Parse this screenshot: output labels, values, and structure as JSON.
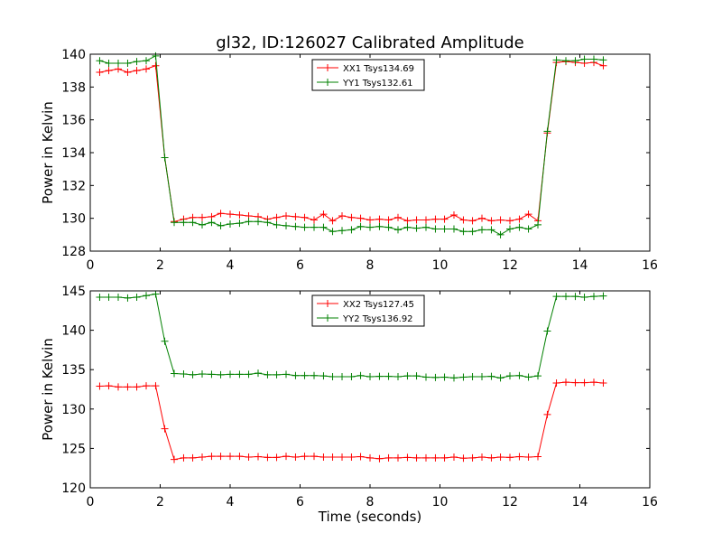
{
  "title": "gl32, ID:126027 Calibrated Amplitude",
  "chart_data": [
    {
      "type": "line",
      "xlabel": "",
      "ylabel": "Power in Kelvin",
      "xlim": [
        0,
        16
      ],
      "ylim": [
        128,
        140
      ],
      "xticks": [
        "0",
        "2",
        "4",
        "6",
        "8",
        "10",
        "12",
        "14",
        "16"
      ],
      "yticks": [
        "128",
        "130",
        "132",
        "134",
        "136",
        "138",
        "140"
      ],
      "legend_position": "top-center",
      "series": [
        {
          "name": "XX1 Tsys134.69",
          "color": "#ff0000",
          "marker": "+",
          "x": [
            0.27,
            0.53,
            0.8,
            1.07,
            1.33,
            1.6,
            1.87,
            2.13,
            2.4,
            2.67,
            2.93,
            3.2,
            3.47,
            3.73,
            4.0,
            4.27,
            4.53,
            4.8,
            5.07,
            5.33,
            5.6,
            5.87,
            6.13,
            6.4,
            6.67,
            6.93,
            7.2,
            7.47,
            7.73,
            8.0,
            8.27,
            8.53,
            8.8,
            9.07,
            9.33,
            9.6,
            9.87,
            10.13,
            10.4,
            10.67,
            10.93,
            11.2,
            11.47,
            11.73,
            12.0,
            12.27,
            12.53,
            12.8,
            13.07,
            13.33,
            13.6,
            13.87,
            14.13,
            14.4,
            14.67
          ],
          "values": [
            138.9,
            139.0,
            139.1,
            138.9,
            139.0,
            139.1,
            139.3,
            133.7,
            129.8,
            129.95,
            130.05,
            130.05,
            130.1,
            130.3,
            130.25,
            130.2,
            130.15,
            130.1,
            129.95,
            130.05,
            130.15,
            130.1,
            130.05,
            129.9,
            130.25,
            129.85,
            130.15,
            130.05,
            130.0,
            129.9,
            129.95,
            129.9,
            130.05,
            129.85,
            129.9,
            129.9,
            129.95,
            129.95,
            130.2,
            129.9,
            129.85,
            130.0,
            129.85,
            129.9,
            129.85,
            129.95,
            130.25,
            129.85,
            135.2,
            139.5,
            139.55,
            139.5,
            139.45,
            139.5,
            139.3
          ]
        },
        {
          "name": "YY1 Tsys132.61",
          "color": "#008000",
          "marker": "+",
          "x": [
            0.27,
            0.53,
            0.8,
            1.07,
            1.33,
            1.6,
            1.87,
            2.13,
            2.4,
            2.67,
            2.93,
            3.2,
            3.47,
            3.73,
            4.0,
            4.27,
            4.53,
            4.8,
            5.07,
            5.33,
            5.6,
            5.87,
            6.13,
            6.4,
            6.67,
            6.93,
            7.2,
            7.47,
            7.73,
            8.0,
            8.27,
            8.53,
            8.8,
            9.07,
            9.33,
            9.6,
            9.87,
            10.13,
            10.4,
            10.67,
            10.93,
            11.2,
            11.47,
            11.73,
            12.0,
            12.27,
            12.53,
            12.8,
            13.07,
            13.33,
            13.6,
            13.87,
            14.13,
            14.4,
            14.67
          ],
          "values": [
            139.6,
            139.45,
            139.45,
            139.45,
            139.55,
            139.6,
            139.9,
            133.7,
            129.75,
            129.75,
            129.75,
            129.6,
            129.75,
            129.55,
            129.65,
            129.7,
            129.8,
            129.8,
            129.75,
            129.6,
            129.55,
            129.5,
            129.45,
            129.45,
            129.45,
            129.2,
            129.25,
            129.3,
            129.5,
            129.45,
            129.5,
            129.45,
            129.3,
            129.45,
            129.4,
            129.45,
            129.35,
            129.35,
            129.35,
            129.2,
            129.2,
            129.3,
            129.3,
            129.0,
            129.35,
            129.45,
            129.35,
            129.6,
            135.3,
            139.65,
            139.6,
            139.6,
            139.7,
            139.7,
            139.65
          ]
        }
      ]
    },
    {
      "type": "line",
      "xlabel": "Time (seconds)",
      "ylabel": "Power in Kelvin",
      "xlim": [
        0,
        16
      ],
      "ylim": [
        120,
        145
      ],
      "xticks": [
        "0",
        "2",
        "4",
        "6",
        "8",
        "10",
        "12",
        "14",
        "16"
      ],
      "yticks": [
        "120",
        "125",
        "130",
        "135",
        "140",
        "145"
      ],
      "legend_position": "top-center",
      "series": [
        {
          "name": "XX2 Tsys127.45",
          "color": "#ff0000",
          "marker": "+",
          "x": [
            0.27,
            0.53,
            0.8,
            1.07,
            1.33,
            1.6,
            1.87,
            2.13,
            2.4,
            2.67,
            2.93,
            3.2,
            3.47,
            3.73,
            4.0,
            4.27,
            4.53,
            4.8,
            5.07,
            5.33,
            5.6,
            5.87,
            6.13,
            6.4,
            6.67,
            6.93,
            7.2,
            7.47,
            7.73,
            8.0,
            8.27,
            8.53,
            8.8,
            9.07,
            9.33,
            9.6,
            9.87,
            10.13,
            10.4,
            10.67,
            10.93,
            11.2,
            11.47,
            11.73,
            12.0,
            12.27,
            12.53,
            12.8,
            13.07,
            13.33,
            13.6,
            13.87,
            14.13,
            14.4,
            14.67
          ],
          "values": [
            132.9,
            132.95,
            132.8,
            132.8,
            132.8,
            132.95,
            132.95,
            127.5,
            123.6,
            123.8,
            123.8,
            123.9,
            124.0,
            124.0,
            124.0,
            124.0,
            123.9,
            123.95,
            123.85,
            123.85,
            124.0,
            123.9,
            124.0,
            124.0,
            123.9,
            123.9,
            123.9,
            123.9,
            123.95,
            123.8,
            123.7,
            123.8,
            123.8,
            123.85,
            123.8,
            123.8,
            123.8,
            123.8,
            123.9,
            123.75,
            123.8,
            123.9,
            123.8,
            123.9,
            123.85,
            123.95,
            123.9,
            123.95,
            129.3,
            133.3,
            133.4,
            133.35,
            133.35,
            133.4,
            133.3
          ]
        },
        {
          "name": "YY2 Tsys136.92",
          "color": "#008000",
          "marker": "+",
          "x": [
            0.27,
            0.53,
            0.8,
            1.07,
            1.33,
            1.6,
            1.87,
            2.13,
            2.4,
            2.67,
            2.93,
            3.2,
            3.47,
            3.73,
            4.0,
            4.27,
            4.53,
            4.8,
            5.07,
            5.33,
            5.6,
            5.87,
            6.13,
            6.4,
            6.67,
            6.93,
            7.2,
            7.47,
            7.73,
            8.0,
            8.27,
            8.53,
            8.8,
            9.07,
            9.33,
            9.6,
            9.87,
            10.13,
            10.4,
            10.67,
            10.93,
            11.2,
            11.47,
            11.73,
            12.0,
            12.27,
            12.53,
            12.8,
            13.07,
            13.33,
            13.6,
            13.87,
            14.13,
            14.4,
            14.67
          ],
          "values": [
            144.2,
            144.2,
            144.2,
            144.1,
            144.2,
            144.4,
            144.6,
            138.6,
            134.5,
            134.45,
            134.35,
            134.45,
            134.4,
            134.35,
            134.4,
            134.4,
            134.4,
            134.55,
            134.35,
            134.35,
            134.4,
            134.25,
            134.25,
            134.25,
            134.2,
            134.1,
            134.1,
            134.1,
            134.25,
            134.1,
            134.15,
            134.15,
            134.1,
            134.2,
            134.2,
            134.05,
            134.0,
            134.05,
            133.95,
            134.05,
            134.1,
            134.1,
            134.15,
            133.95,
            134.2,
            134.25,
            134.05,
            134.2,
            139.9,
            144.3,
            144.3,
            144.3,
            144.2,
            144.3,
            144.35
          ]
        }
      ]
    }
  ]
}
